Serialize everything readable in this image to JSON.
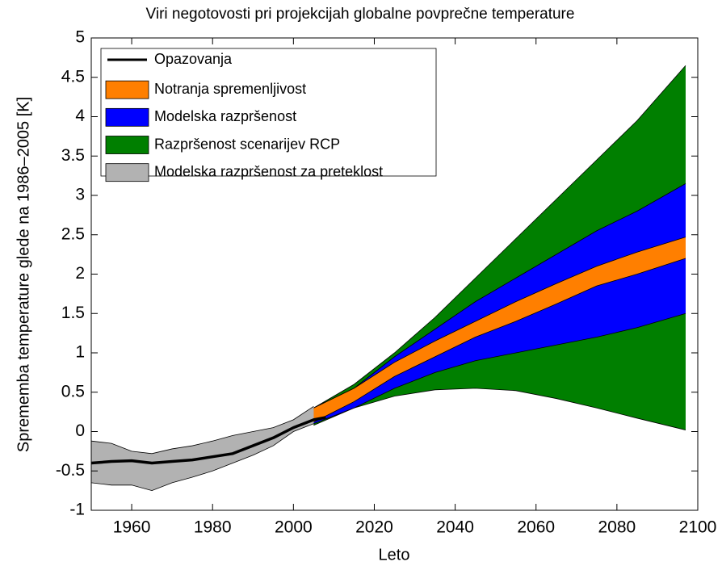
{
  "chart_data": {
    "type": "band",
    "title": "Viri negotovosti pri projekcijah globalne povprečne temperature",
    "xlabel": "Leto",
    "ylabel": "Sprememba temperature glede na 1986–2005 [K]",
    "xlim": [
      1950,
      2100
    ],
    "xticks": [
      1960,
      1980,
      2000,
      2020,
      2040,
      2060,
      2080,
      2100
    ],
    "ylim": [
      -1,
      5
    ],
    "yticks": [
      -1,
      -0.5,
      0,
      0.5,
      1,
      1.5,
      2,
      2.5,
      3,
      3.5,
      4,
      4.5,
      5
    ],
    "legend": "upper-left",
    "series": [
      {
        "name": "Razpršenost scenarijev RCP",
        "color": "#007f00",
        "x": [
          2005,
          2015,
          2025,
          2035,
          2045,
          2055,
          2065,
          2075,
          2085,
          2097
        ],
        "lower": [
          0.08,
          0.3,
          0.45,
          0.53,
          0.55,
          0.52,
          0.42,
          0.3,
          0.17,
          0.02
        ],
        "upper": [
          0.3,
          0.6,
          1.0,
          1.45,
          1.95,
          2.45,
          2.95,
          3.45,
          3.95,
          4.65
        ]
      },
      {
        "name": "Modelska razpršenost",
        "color": "#0000ff",
        "x": [
          2005,
          2015,
          2025,
          2035,
          2045,
          2055,
          2065,
          2075,
          2085,
          2097
        ],
        "lower": [
          0.1,
          0.3,
          0.55,
          0.75,
          0.9,
          1.0,
          1.1,
          1.2,
          1.32,
          1.5
        ],
        "upper": [
          0.3,
          0.55,
          0.95,
          1.3,
          1.65,
          1.95,
          2.25,
          2.55,
          2.8,
          3.15
        ]
      },
      {
        "name": "Notranja spremenljivost",
        "color": "#ff7f00",
        "x": [
          2005,
          2015,
          2025,
          2035,
          2045,
          2055,
          2065,
          2075,
          2085,
          2097
        ],
        "lower": [
          0.12,
          0.38,
          0.7,
          0.95,
          1.2,
          1.4,
          1.62,
          1.85,
          2.0,
          2.2
        ],
        "upper": [
          0.3,
          0.55,
          0.88,
          1.15,
          1.4,
          1.65,
          1.88,
          2.1,
          2.28,
          2.47
        ]
      },
      {
        "name": "Modelska razpršenost za preteklost",
        "color": "#b2b2b2",
        "x": [
          1950,
          1955,
          1960,
          1965,
          1970,
          1975,
          1980,
          1985,
          1990,
          1995,
          2000,
          2005
        ],
        "lower": [
          -0.65,
          -0.68,
          -0.68,
          -0.75,
          -0.65,
          -0.58,
          -0.5,
          -0.4,
          -0.3,
          -0.18,
          0.0,
          0.1
        ],
        "upper": [
          -0.12,
          -0.15,
          -0.25,
          -0.28,
          -0.22,
          -0.18,
          -0.12,
          -0.05,
          0.0,
          0.05,
          0.15,
          0.32
        ]
      },
      {
        "name": "Opazovanja",
        "color": "#000000",
        "x": [
          1950,
          1955,
          1960,
          1965,
          1970,
          1975,
          1980,
          1985,
          1990,
          1995,
          2000,
          2005,
          2008
        ],
        "values": [
          -0.4,
          -0.38,
          -0.37,
          -0.4,
          -0.38,
          -0.36,
          -0.32,
          -0.28,
          -0.18,
          -0.08,
          0.05,
          0.15,
          0.18
        ]
      }
    ]
  }
}
